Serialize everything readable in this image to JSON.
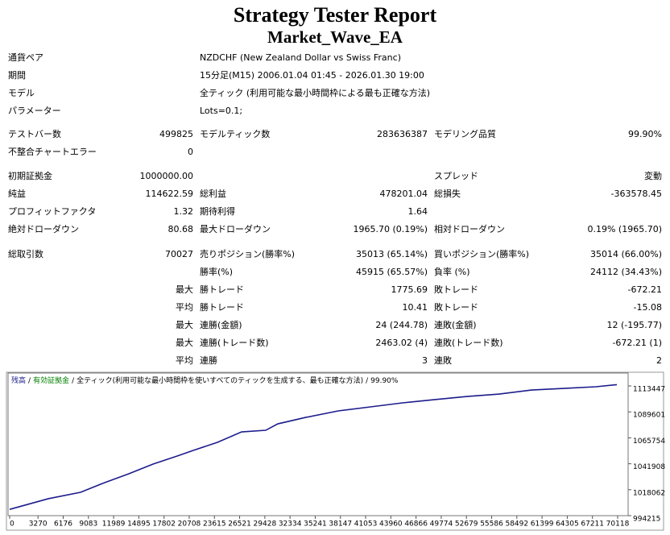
{
  "header": {
    "title": "Strategy Tester Report",
    "subtitle": "Market_Wave_EA"
  },
  "info": [
    [
      "通貨ペア",
      "NZDCHF (New Zealand Dollar vs Swiss Franc)"
    ],
    [
      "期間",
      "15分足(M15) 2006.01.04 01:45 - 2026.01.30 19:00"
    ],
    [
      "モデル",
      "全ティック (利用可能な最小時間枠による最も正確な方法)"
    ],
    [
      "パラメーター",
      "Lots=0.1;"
    ]
  ],
  "stats": [
    {
      "label1": "テストバー数",
      "value1": "499825",
      "label2": "モデルティック数",
      "value2": "283636387",
      "label3": "モデリング品質",
      "value3": "99.90%"
    },
    {
      "label1": "不整合チャートエラー",
      "value1": "0"
    },
    {
      "label1": "初期証拠金",
      "value1": "1000000.00",
      "label3": "スプレッド",
      "value3": "変動"
    },
    {
      "label1": "純益",
      "value1": "114622.59",
      "label2": "総利益",
      "value2": "478201.04",
      "label3": "総損失",
      "value3": "-363578.45"
    },
    {
      "label1": "プロフィットファクタ",
      "value1": "1.32",
      "label2": "期待利得",
      "value2": "1.64"
    },
    {
      "label1": "絶対ドローダウン",
      "value1": "80.68",
      "label2": "最大ドローダウン",
      "value2": "1965.70 (0.19%)",
      "label3": "相対ドローダウン",
      "value3": "0.19% (1965.70)"
    },
    {
      "label1": "総取引数",
      "value1": "70027",
      "label2": "売りポジション(勝率%)",
      "value2": "35013 (65.14%)",
      "label3": "買いポジション(勝率%)",
      "value3": "35014 (66.00%)"
    },
    {
      "label2": "勝率(%)",
      "value2": "45915 (65.57%)",
      "label3": "負率 (%)",
      "value3": "24112 (34.43%)"
    },
    {
      "value1": "最大",
      "label2": "勝トレード",
      "value2": "1775.69",
      "label3": "敗トレード",
      "value3": "-672.21"
    },
    {
      "value1": "平均",
      "label2": "勝トレード",
      "value2": "10.41",
      "label3": "敗トレード",
      "value3": "-15.08"
    },
    {
      "value1": "最大",
      "label2": "連勝(金額)",
      "value2": "24 (244.78)",
      "label3": "連敗(金額)",
      "value3": "12 (-195.77)"
    },
    {
      "value1": "最大",
      "label2": "連勝(トレード数)",
      "value2": "2463.02 (4)",
      "label3": "連敗(トレード数)",
      "value3": "-672.21 (1)"
    },
    {
      "value1": "平均",
      "label2": "連勝",
      "value2": "3",
      "label3": "連敗",
      "value3": "2"
    }
  ],
  "chart_data": {
    "type": "line",
    "legend_separator": "/",
    "equity": {
      "name": "有効証拠金",
      "color": "#008000"
    },
    "model": "全ティック(利用可能な最小時間枠を使いすべてのティックを生成する、最も正確な方法)",
    "quality": "99.90%",
    "x": [
      0,
      4458,
      8173,
      10959,
      13745,
      16531,
      19317,
      21175,
      23961,
      26747,
      29533,
      30926,
      34177,
      37891,
      41606,
      45321,
      49036,
      52751,
      56466,
      60181,
      63896,
      67611,
      70027
    ],
    "series": [
      {
        "name": "残高",
        "color": "#1c1c8c",
        "values": [
          1000000,
          1009800,
          1015700,
          1024600,
          1032700,
          1041600,
          1049000,
          1054200,
          1061600,
          1071200,
          1072700,
          1078600,
          1084600,
          1090500,
          1094200,
          1097900,
          1100900,
          1103800,
          1106000,
          1109700,
          1111200,
          1112700,
          1114622
        ]
      }
    ],
    "xlim": [
      0,
      71325
    ],
    "ylim": [
      994215,
      1125300
    ],
    "xticks": [
      0,
      3270,
      6176,
      9083,
      11989,
      14895,
      17802,
      20708,
      23615,
      26521,
      29428,
      32334,
      35241,
      38147,
      41053,
      43960,
      46866,
      49774,
      52679,
      55586,
      58492,
      61399,
      64305,
      67211,
      70118
    ],
    "yticks": [
      994215,
      1018062,
      1041908,
      1065754,
      1089601,
      1113447
    ],
    "grid": false
  }
}
